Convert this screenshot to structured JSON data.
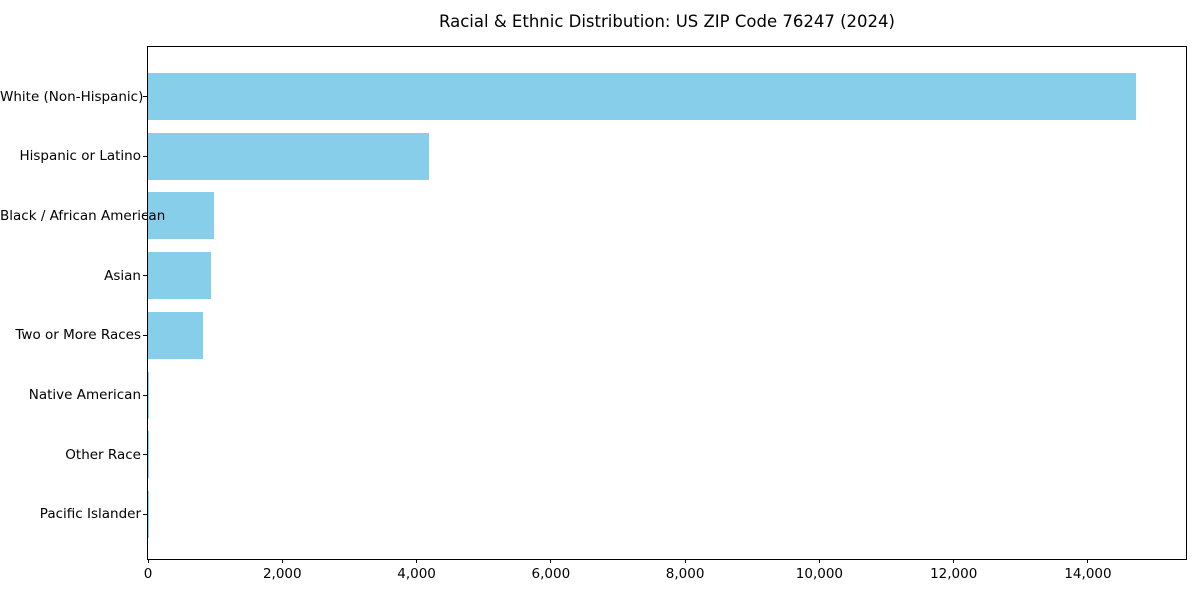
{
  "chart_data": {
    "type": "bar",
    "orientation": "horizontal",
    "title": "Racial & Ethnic Distribution: US ZIP Code 76247 (2024)",
    "categories": [
      "White (Non-Hispanic)",
      "Hispanic or Latino",
      "Black / African American",
      "Asian",
      "Two or More Races",
      "Native American",
      "Other Race",
      "Pacific Islander"
    ],
    "values": [
      14720,
      4185,
      983,
      938,
      819,
      22,
      10,
      5
    ],
    "xlabel": "",
    "ylabel": "",
    "xlim": [
      0,
      15460
    ],
    "x_ticks": [
      0,
      2000,
      4000,
      6000,
      8000,
      10000,
      12000,
      14000
    ],
    "x_tick_labels": [
      "0",
      "2,000",
      "4,000",
      "6,000",
      "8,000",
      "10,000",
      "12,000",
      "14,000"
    ],
    "bar_color": "#87CEEB",
    "text_color": "#000000",
    "axis_color": "#000000",
    "background_color": "#ffffff",
    "grid": false,
    "legend_position": "none"
  }
}
